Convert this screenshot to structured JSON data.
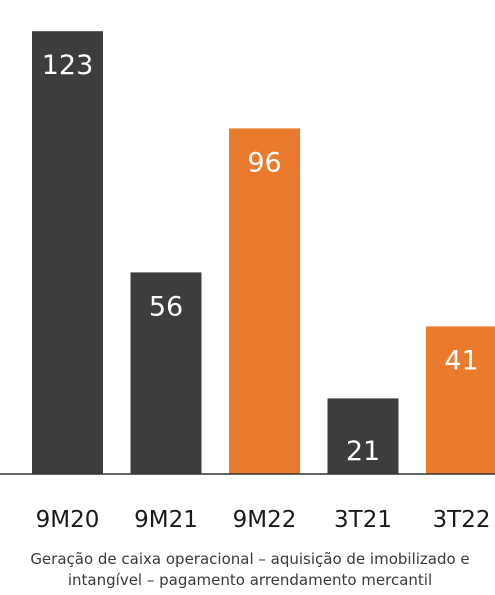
{
  "chart_data": {
    "type": "bar",
    "categories": [
      "9M20",
      "9M21",
      "9M22",
      "3T21",
      "3T22"
    ],
    "values": [
      123,
      56,
      96,
      21,
      41
    ],
    "value_labels": [
      "123",
      "56",
      "96",
      "21",
      "41"
    ],
    "ylim": [
      0,
      130
    ],
    "grid": false,
    "legend": "none",
    "caption_lines": [
      "Geração de caixa operacional – aquisição de imobilizado e",
      "intangível – pagamento arrendamento mercantil"
    ]
  },
  "colors": {
    "dark_bar": "#3d3d3d",
    "highlight_bar": "#ea7a2c",
    "baseline": "#333333",
    "highlighted_categories": [
      "9M22",
      "3T22"
    ]
  }
}
